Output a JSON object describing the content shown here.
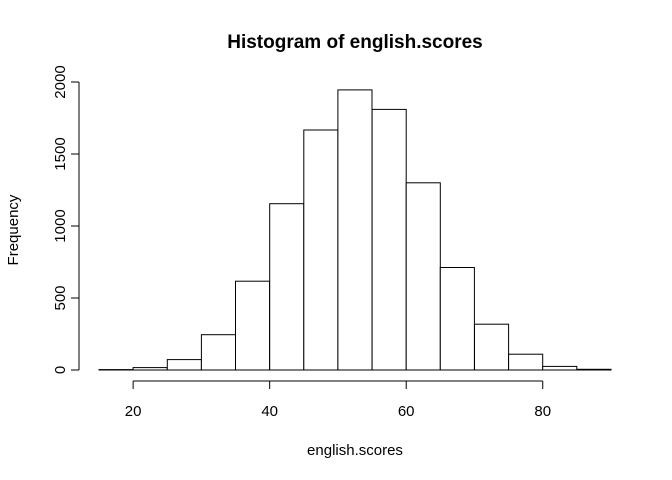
{
  "chart_data": {
    "type": "bar",
    "title": "Histogram of english.scores",
    "xlabel": "english.scores",
    "ylabel": "Frequency",
    "bins": [
      {
        "start": 15,
        "end": 20,
        "count": 3
      },
      {
        "start": 20,
        "end": 25,
        "count": 17
      },
      {
        "start": 25,
        "end": 30,
        "count": 72
      },
      {
        "start": 30,
        "end": 35,
        "count": 245
      },
      {
        "start": 35,
        "end": 40,
        "count": 617
      },
      {
        "start": 40,
        "end": 45,
        "count": 1155
      },
      {
        "start": 45,
        "end": 50,
        "count": 1667
      },
      {
        "start": 50,
        "end": 55,
        "count": 1945
      },
      {
        "start": 55,
        "end": 60,
        "count": 1810
      },
      {
        "start": 60,
        "end": 65,
        "count": 1300
      },
      {
        "start": 65,
        "end": 70,
        "count": 712
      },
      {
        "start": 70,
        "end": 75,
        "count": 318
      },
      {
        "start": 75,
        "end": 80,
        "count": 110
      },
      {
        "start": 80,
        "end": 85,
        "count": 25
      },
      {
        "start": 85,
        "end": 90,
        "count": 5
      }
    ],
    "xlim": [
      15,
      90
    ],
    "ylim": [
      0,
      2000
    ],
    "x_ticks": [
      20,
      40,
      60,
      80
    ],
    "y_ticks": [
      0,
      500,
      1000,
      1500,
      2000
    ],
    "grid": false,
    "bar_fill": "#ffffff",
    "bar_stroke": "#000000"
  }
}
